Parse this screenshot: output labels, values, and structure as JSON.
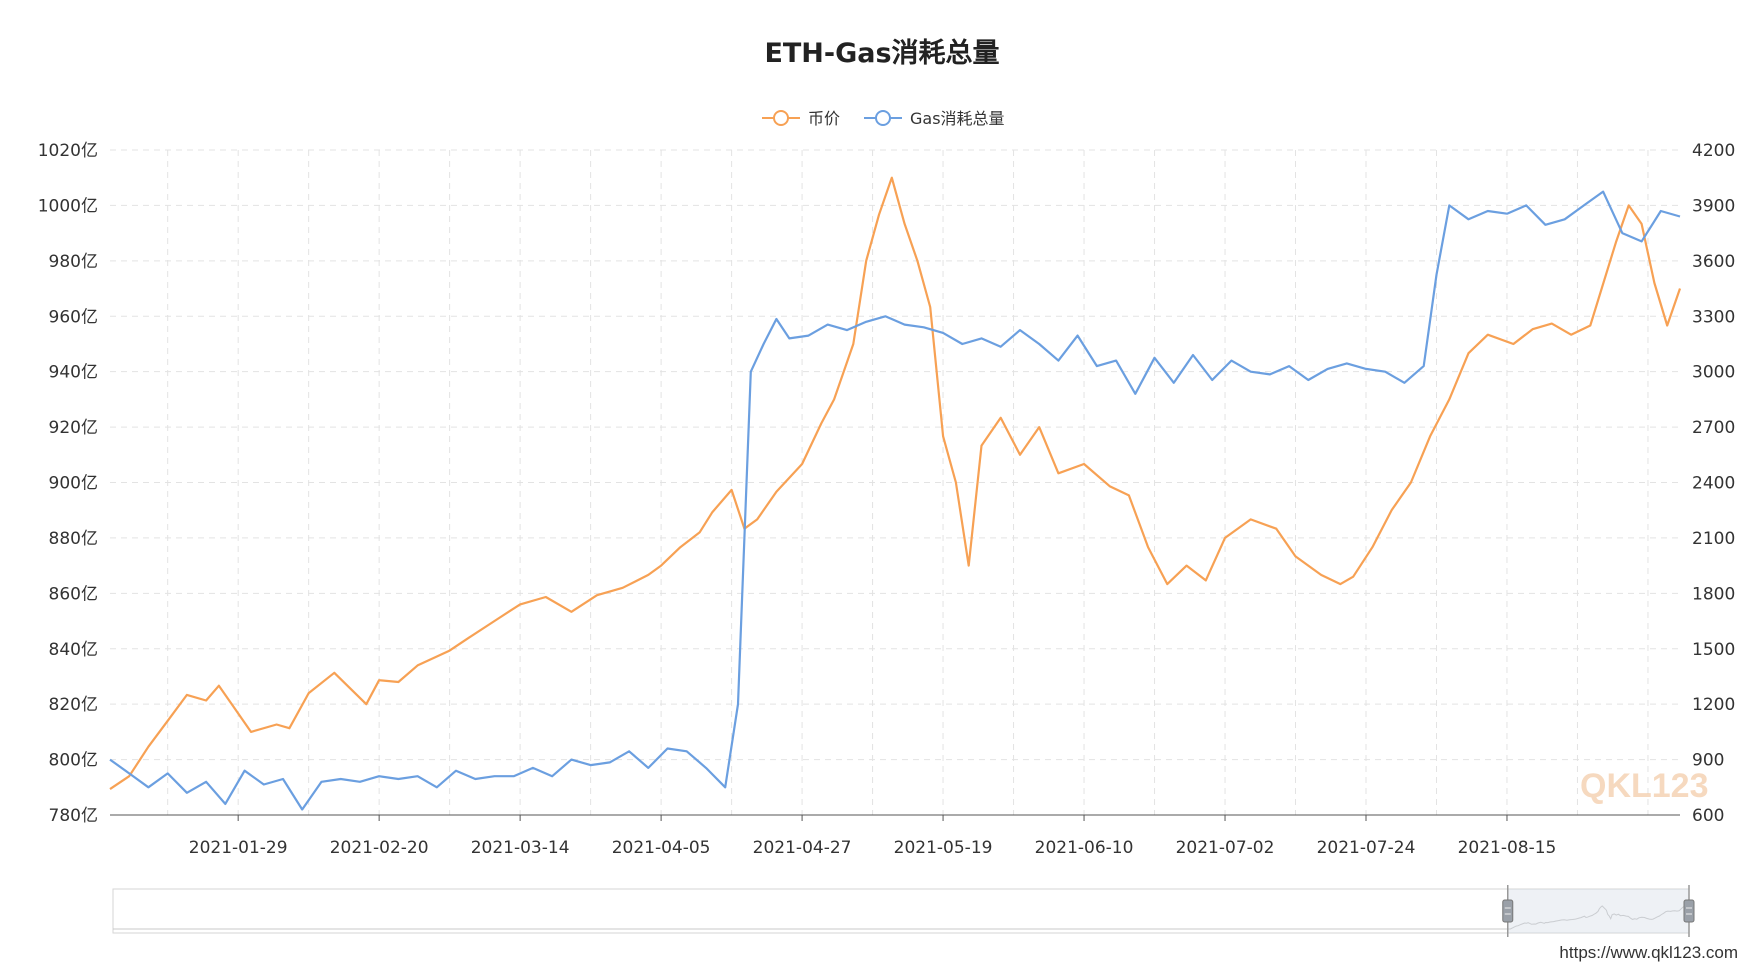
{
  "chart_data": {
    "type": "line",
    "title": "ETH-Gas消耗总量",
    "legend": {
      "placement": "top-center",
      "items": [
        "币价",
        "Gas消耗总量"
      ]
    },
    "colors": {
      "price": "#f7a154",
      "gas": "#6b9fe0"
    },
    "grid": true,
    "x_axis": {
      "type": "date",
      "labels": [
        "2021-01-29",
        "2021-02-20",
        "2021-03-14",
        "2021-04-05",
        "2021-04-27",
        "2021-05-19",
        "2021-06-10",
        "2021-07-02",
        "2021-07-24",
        "2021-08-15"
      ],
      "range": [
        "2021-01-09",
        "2021-09-11"
      ]
    },
    "y_left": {
      "labels": [
        "780亿",
        "800亿",
        "820亿",
        "840亿",
        "860亿",
        "880亿",
        "900亿",
        "920亿",
        "940亿",
        "960亿",
        "980亿",
        "1000亿",
        "1020亿"
      ],
      "range": [
        780,
        1020
      ],
      "unit": "亿"
    },
    "y_right": {
      "labels": [
        "600",
        "900",
        "1200",
        "1500",
        "1800",
        "2100",
        "2400",
        "2700",
        "3000",
        "3300",
        "3600",
        "3900",
        "4200"
      ],
      "range": [
        600,
        4200
      ]
    },
    "series": [
      {
        "name": "币价",
        "axis": "right",
        "points": [
          [
            "2021-01-09",
            740
          ],
          [
            "2021-01-12",
            810
          ],
          [
            "2021-01-15",
            970
          ],
          [
            "2021-01-18",
            1110
          ],
          [
            "2021-01-21",
            1250
          ],
          [
            "2021-01-24",
            1220
          ],
          [
            "2021-01-26",
            1300
          ],
          [
            "2021-01-28",
            1200
          ],
          [
            "2021-01-31",
            1050
          ],
          [
            "2021-02-04",
            1090
          ],
          [
            "2021-02-06",
            1070
          ],
          [
            "2021-02-09",
            1260
          ],
          [
            "2021-02-13",
            1370
          ],
          [
            "2021-02-18",
            1200
          ],
          [
            "2021-02-20",
            1330
          ],
          [
            "2021-02-23",
            1320
          ],
          [
            "2021-02-26",
            1410
          ],
          [
            "2021-03-03",
            1490
          ],
          [
            "2021-03-06",
            1560
          ],
          [
            "2021-03-10",
            1650
          ],
          [
            "2021-03-14",
            1740
          ],
          [
            "2021-03-18",
            1780
          ],
          [
            "2021-03-22",
            1700
          ],
          [
            "2021-03-26",
            1790
          ],
          [
            "2021-03-30",
            1830
          ],
          [
            "2021-04-03",
            1900
          ],
          [
            "2021-04-05",
            1950
          ],
          [
            "2021-04-08",
            2050
          ],
          [
            "2021-04-11",
            2130
          ],
          [
            "2021-04-13",
            2240
          ],
          [
            "2021-04-16",
            2360
          ],
          [
            "2021-04-18",
            2150
          ],
          [
            "2021-04-20",
            2200
          ],
          [
            "2021-04-23",
            2350
          ],
          [
            "2021-04-27",
            2500
          ],
          [
            "2021-04-30",
            2720
          ],
          [
            "2021-05-02",
            2850
          ],
          [
            "2021-05-05",
            3150
          ],
          [
            "2021-05-07",
            3600
          ],
          [
            "2021-05-09",
            3850
          ],
          [
            "2021-05-11",
            4050
          ],
          [
            "2021-05-13",
            3800
          ],
          [
            "2021-05-15",
            3600
          ],
          [
            "2021-05-17",
            3350
          ],
          [
            "2021-05-19",
            2650
          ],
          [
            "2021-05-21",
            2400
          ],
          [
            "2021-05-23",
            1950
          ],
          [
            "2021-05-25",
            2600
          ],
          [
            "2021-05-28",
            2750
          ],
          [
            "2021-05-31",
            2550
          ],
          [
            "2021-06-03",
            2700
          ],
          [
            "2021-06-06",
            2450
          ],
          [
            "2021-06-10",
            2500
          ],
          [
            "2021-06-14",
            2380
          ],
          [
            "2021-06-17",
            2330
          ],
          [
            "2021-06-20",
            2050
          ],
          [
            "2021-06-23",
            1850
          ],
          [
            "2021-06-26",
            1950
          ],
          [
            "2021-06-29",
            1870
          ],
          [
            "2021-07-02",
            2100
          ],
          [
            "2021-07-06",
            2200
          ],
          [
            "2021-07-10",
            2150
          ],
          [
            "2021-07-13",
            2000
          ],
          [
            "2021-07-17",
            1900
          ],
          [
            "2021-07-20",
            1850
          ],
          [
            "2021-07-22",
            1890
          ],
          [
            "2021-07-25",
            2050
          ],
          [
            "2021-07-28",
            2250
          ],
          [
            "2021-07-31",
            2400
          ],
          [
            "2021-08-03",
            2650
          ],
          [
            "2021-08-06",
            2850
          ],
          [
            "2021-08-09",
            3100
          ],
          [
            "2021-08-12",
            3200
          ],
          [
            "2021-08-16",
            3150
          ],
          [
            "2021-08-19",
            3230
          ],
          [
            "2021-08-22",
            3260
          ],
          [
            "2021-08-25",
            3200
          ],
          [
            "2021-08-28",
            3250
          ],
          [
            "2021-09-01",
            3700
          ],
          [
            "2021-09-03",
            3900
          ],
          [
            "2021-09-05",
            3800
          ],
          [
            "2021-09-07",
            3480
          ],
          [
            "2021-09-09",
            3250
          ],
          [
            "2021-09-11",
            3450
          ]
        ]
      },
      {
        "name": "Gas消耗总量",
        "axis": "left",
        "points": [
          [
            "2021-01-09",
            800
          ],
          [
            "2021-01-12",
            795
          ],
          [
            "2021-01-15",
            790
          ],
          [
            "2021-01-18",
            795
          ],
          [
            "2021-01-21",
            788
          ],
          [
            "2021-01-24",
            792
          ],
          [
            "2021-01-27",
            784
          ],
          [
            "2021-01-30",
            796
          ],
          [
            "2021-02-02",
            791
          ],
          [
            "2021-02-05",
            793
          ],
          [
            "2021-02-08",
            782
          ],
          [
            "2021-02-11",
            792
          ],
          [
            "2021-02-14",
            793
          ],
          [
            "2021-02-17",
            792
          ],
          [
            "2021-02-20",
            794
          ],
          [
            "2021-02-23",
            793
          ],
          [
            "2021-02-26",
            794
          ],
          [
            "2021-03-01",
            790
          ],
          [
            "2021-03-04",
            796
          ],
          [
            "2021-03-07",
            793
          ],
          [
            "2021-03-10",
            794
          ],
          [
            "2021-03-13",
            794
          ],
          [
            "2021-03-16",
            797
          ],
          [
            "2021-03-19",
            794
          ],
          [
            "2021-03-22",
            800
          ],
          [
            "2021-03-25",
            798
          ],
          [
            "2021-03-28",
            799
          ],
          [
            "2021-03-31",
            803
          ],
          [
            "2021-04-03",
            797
          ],
          [
            "2021-04-06",
            804
          ],
          [
            "2021-04-09",
            803
          ],
          [
            "2021-04-12",
            797
          ],
          [
            "2021-04-15",
            790
          ],
          [
            "2021-04-17",
            820
          ],
          [
            "2021-04-18",
            880
          ],
          [
            "2021-04-19",
            940
          ],
          [
            "2021-04-21",
            950
          ],
          [
            "2021-04-23",
            959
          ],
          [
            "2021-04-25",
            952
          ],
          [
            "2021-04-28",
            953
          ],
          [
            "2021-05-01",
            957
          ],
          [
            "2021-05-04",
            955
          ],
          [
            "2021-05-07",
            958
          ],
          [
            "2021-05-10",
            960
          ],
          [
            "2021-05-13",
            957
          ],
          [
            "2021-05-16",
            956
          ],
          [
            "2021-05-19",
            954
          ],
          [
            "2021-05-22",
            950
          ],
          [
            "2021-05-25",
            952
          ],
          [
            "2021-05-28",
            949
          ],
          [
            "2021-05-31",
            955
          ],
          [
            "2021-06-03",
            950
          ],
          [
            "2021-06-06",
            944
          ],
          [
            "2021-06-09",
            953
          ],
          [
            "2021-06-12",
            942
          ],
          [
            "2021-06-15",
            944
          ],
          [
            "2021-06-18",
            932
          ],
          [
            "2021-06-21",
            945
          ],
          [
            "2021-06-24",
            936
          ],
          [
            "2021-06-27",
            946
          ],
          [
            "2021-06-30",
            937
          ],
          [
            "2021-07-03",
            944
          ],
          [
            "2021-07-06",
            940
          ],
          [
            "2021-07-09",
            939
          ],
          [
            "2021-07-12",
            942
          ],
          [
            "2021-07-15",
            937
          ],
          [
            "2021-07-18",
            941
          ],
          [
            "2021-07-21",
            943
          ],
          [
            "2021-07-24",
            941
          ],
          [
            "2021-07-27",
            940
          ],
          [
            "2021-07-30",
            936
          ],
          [
            "2021-08-02",
            942
          ],
          [
            "2021-08-04",
            975
          ],
          [
            "2021-08-06",
            1000
          ],
          [
            "2021-08-09",
            995
          ],
          [
            "2021-08-12",
            998
          ],
          [
            "2021-08-15",
            997
          ],
          [
            "2021-08-18",
            1000
          ],
          [
            "2021-08-21",
            993
          ],
          [
            "2021-08-24",
            995
          ],
          [
            "2021-08-27",
            1000
          ],
          [
            "2021-08-30",
            1005
          ],
          [
            "2021-09-02",
            990
          ],
          [
            "2021-09-05",
            987
          ],
          [
            "2021-09-08",
            998
          ],
          [
            "2021-09-11",
            996
          ]
        ]
      }
    ],
    "slider": {
      "start": 0.885,
      "end": 1.0
    }
  },
  "footer": {
    "url": "https://www.qkl123.com"
  },
  "watermark": "QKL123"
}
